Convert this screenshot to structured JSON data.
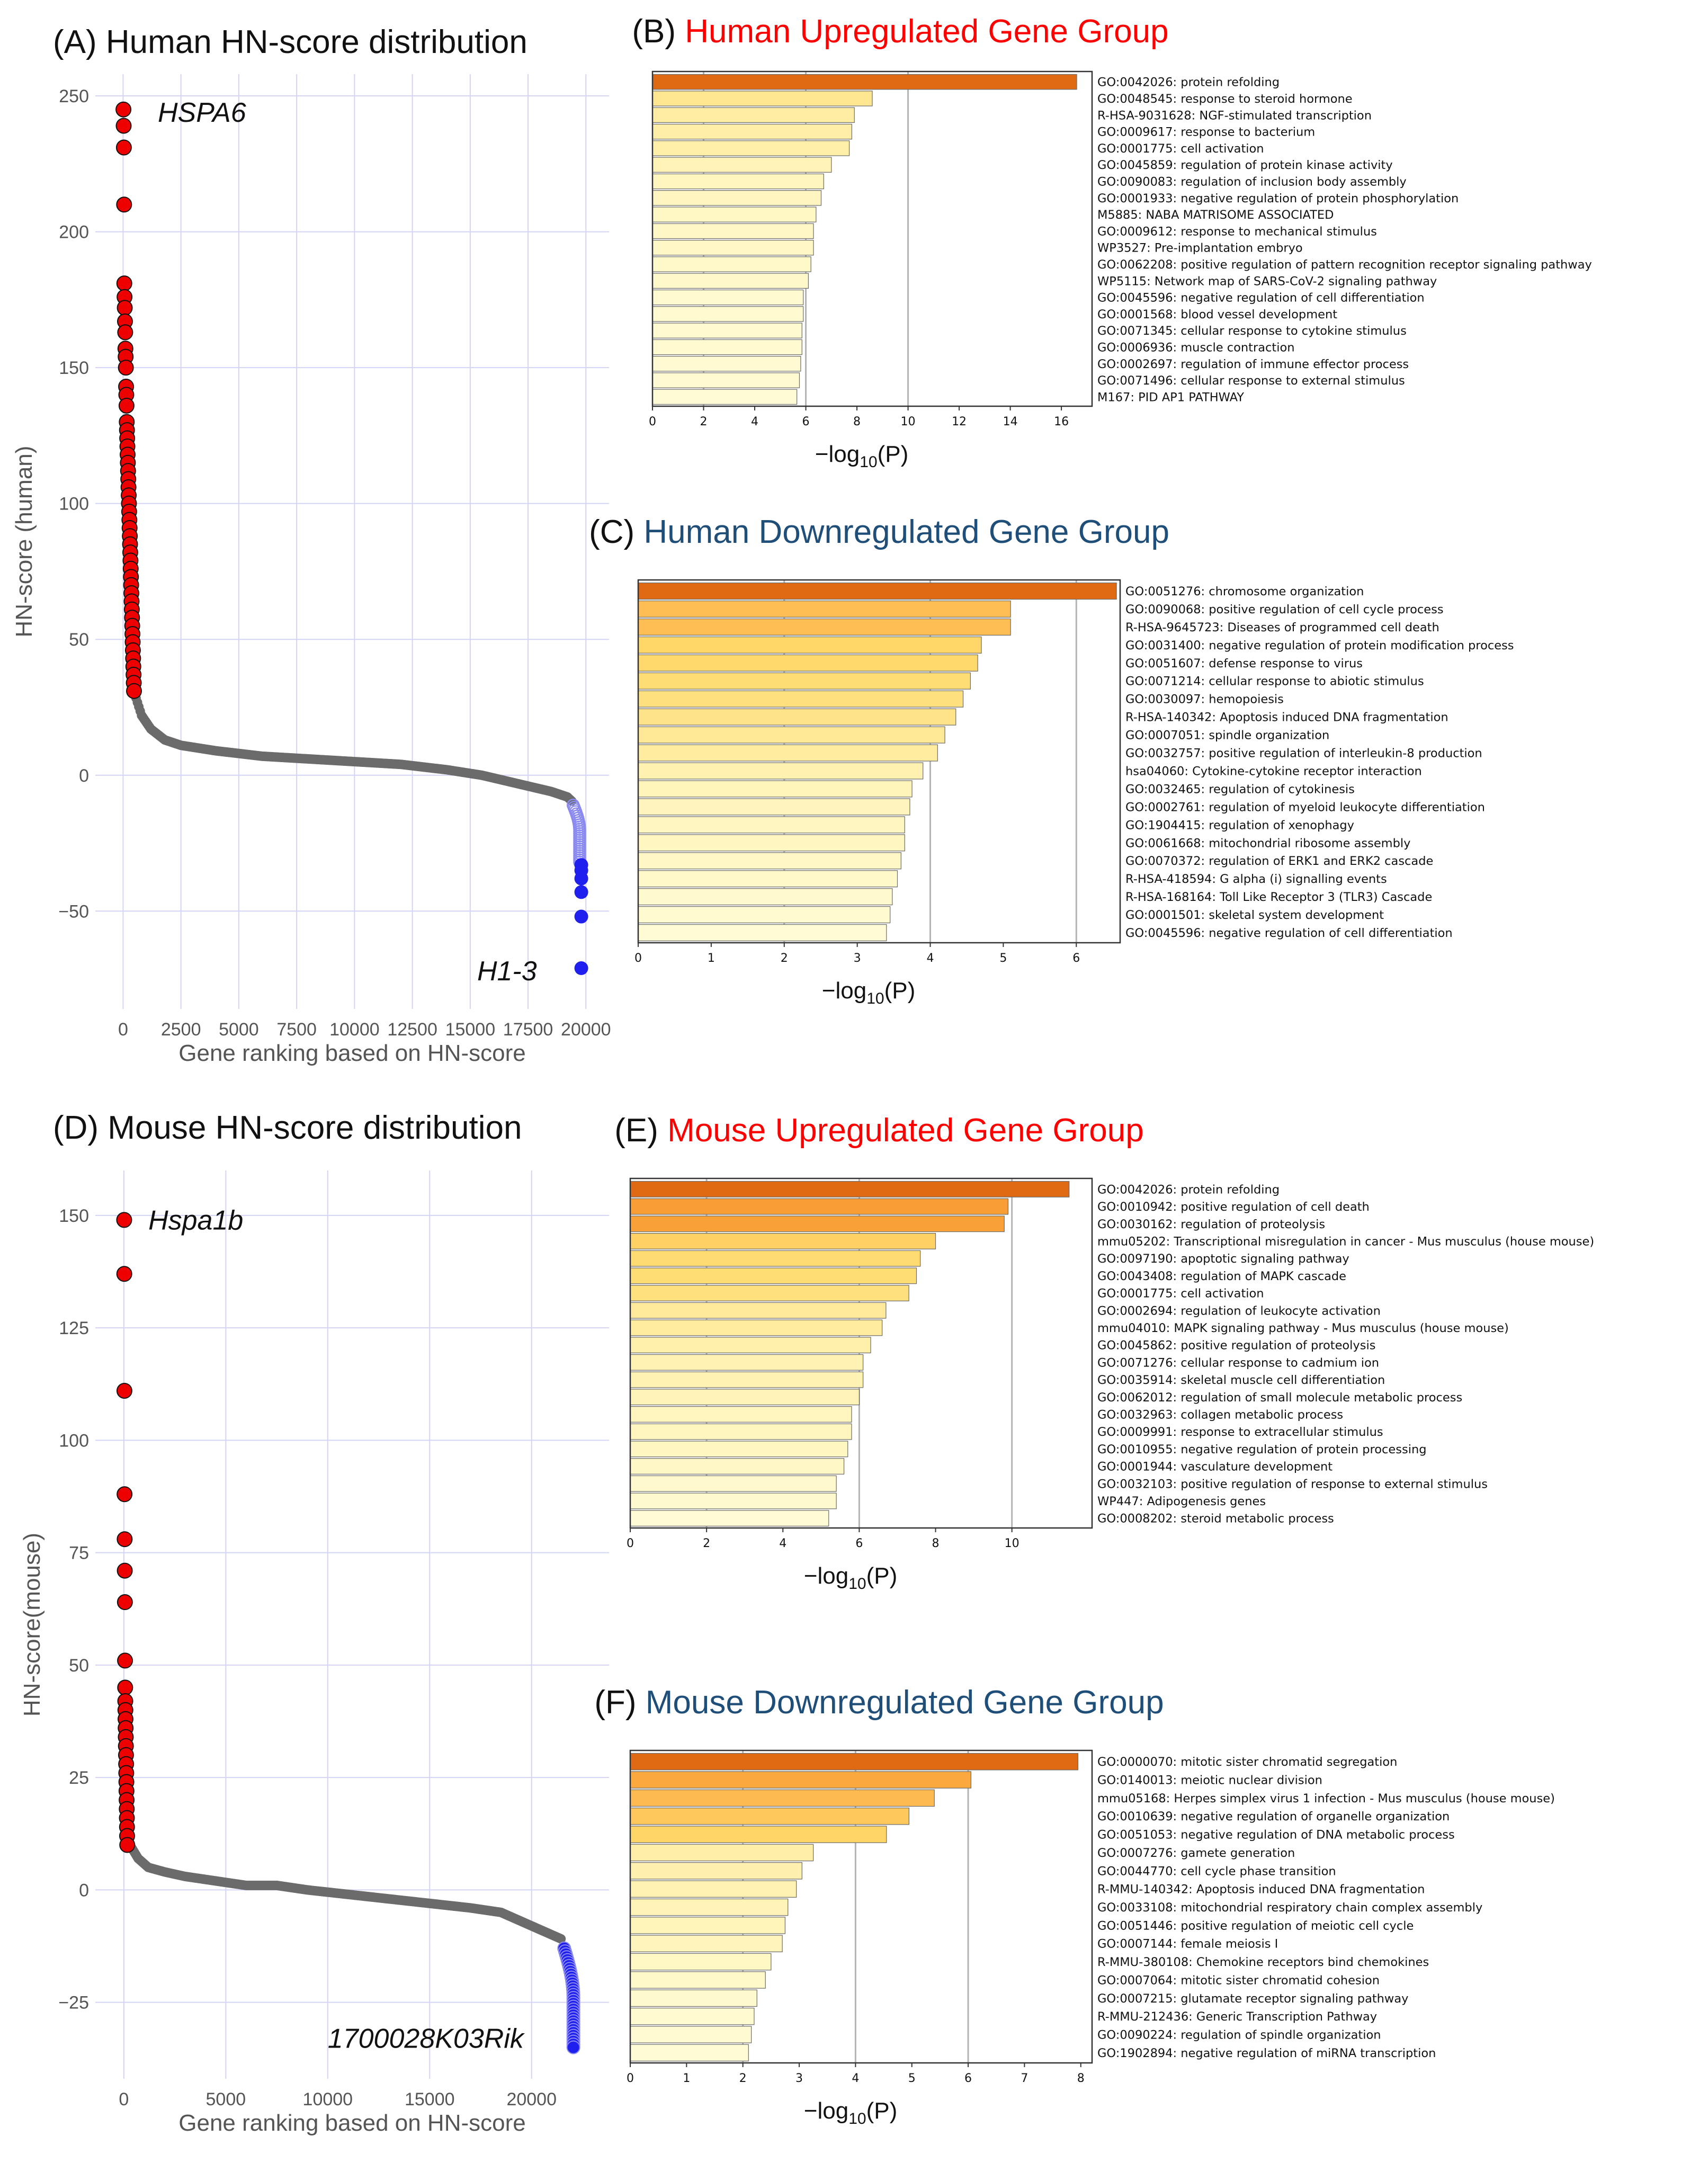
{
  "colors": {
    "up": "#ff0000",
    "down": "#1f4e79",
    "scatter_red": "#ee0000",
    "scatter_gray": "#6b6b6b",
    "scatter_blue": "#2020ee",
    "scatter_lightblue": "#8a8af0",
    "bar_palette": [
      "#fffbd4",
      "#ffeea6",
      "#ffd96b",
      "#fdb34a",
      "#f7962c",
      "#e06a14"
    ]
  },
  "chart_data": [
    {
      "id": "A",
      "type": "scatter",
      "title": "(A) Human HN-score distribution",
      "xlabel": "Gene ranking based on HN-score",
      "ylabel": "HN-score (human)",
      "xlim": [
        -1200,
        21000
      ],
      "ylim": [
        -86,
        258
      ],
      "xticks": [
        0,
        2500,
        5000,
        7500,
        10000,
        12500,
        15000,
        17500,
        20000
      ],
      "yticks": [
        -50,
        0,
        50,
        100,
        150,
        200,
        250
      ],
      "grid": true,
      "n_genes": 19900,
      "annotations": [
        {
          "text": "HSPA6",
          "x": 1500,
          "y": 244
        },
        {
          "text": "H1-3",
          "x": 15300,
          "y": -72
        }
      ],
      "red_points": [
        245,
        239,
        231,
        210,
        181,
        176,
        172,
        167,
        163,
        157,
        154,
        150,
        143,
        140,
        136,
        130,
        127,
        124,
        121,
        118,
        115,
        112,
        109,
        106,
        103,
        100,
        97,
        94,
        91,
        88,
        85,
        82,
        79,
        76,
        73,
        70,
        67,
        64,
        61,
        58,
        55,
        52,
        49,
        46,
        43,
        40,
        37,
        34,
        31
      ],
      "curve": [
        [
          500,
          30
        ],
        [
          800,
          22
        ],
        [
          1200,
          17
        ],
        [
          1800,
          13
        ],
        [
          2500,
          11
        ],
        [
          4000,
          9
        ],
        [
          6000,
          7
        ],
        [
          8000,
          6
        ],
        [
          10000,
          5
        ],
        [
          12000,
          4
        ],
        [
          14000,
          2
        ],
        [
          15500,
          0
        ],
        [
          16500,
          -2
        ],
        [
          17500,
          -4
        ],
        [
          18500,
          -6
        ],
        [
          19200,
          -8
        ],
        [
          19450,
          -10
        ]
      ],
      "blue_light_range": [
        -11,
        -32
      ],
      "blue_points": [
        -33,
        -35,
        -38,
        -43,
        -52,
        -71
      ]
    },
    {
      "id": "D",
      "type": "scatter",
      "title": "(D) Mouse HN-score distribution",
      "xlabel": "Gene ranking based on HN-score",
      "ylabel": "HN-score(mouse)",
      "xlim": [
        -1400,
        23800
      ],
      "ylim": [
        -42,
        160
      ],
      "xticks": [
        0,
        5000,
        10000,
        15000,
        20000
      ],
      "yticks": [
        -25,
        0,
        25,
        50,
        75,
        100,
        125,
        150
      ],
      "grid": true,
      "n_genes": 22000,
      "annotations": [
        {
          "text": "Hspa1b",
          "x": 1200,
          "y": 149
        },
        {
          "text": "1700028K03Rik",
          "x": 10000,
          "y": -33
        }
      ],
      "red_points": [
        149,
        137,
        111,
        88,
        78,
        71,
        64,
        51,
        45,
        42,
        40,
        38,
        36,
        34,
        32,
        30,
        28,
        26,
        24,
        22,
        20,
        18,
        16,
        14,
        12,
        10
      ],
      "curve": [
        [
          300,
          10
        ],
        [
          700,
          7
        ],
        [
          1200,
          5
        ],
        [
          2000,
          4
        ],
        [
          3000,
          3
        ],
        [
          4500,
          2
        ],
        [
          6000,
          1
        ],
        [
          7500,
          1
        ],
        [
          9000,
          0
        ],
        [
          11000,
          -1
        ],
        [
          13000,
          -2
        ],
        [
          15000,
          -3
        ],
        [
          17000,
          -4
        ],
        [
          18500,
          -5
        ],
        [
          19500,
          -7
        ],
        [
          20500,
          -9
        ],
        [
          21500,
          -11
        ]
      ],
      "blue_range": [
        -13,
        -35
      ]
    },
    {
      "id": "B",
      "type": "bar",
      "orientation": "horizontal",
      "title_prefix": "(B) ",
      "title_main": "Human Upregulated Gene Group",
      "title_color": "up",
      "xlabel": "−log₁₀(P)",
      "xlim": [
        0,
        17.2
      ],
      "xticks": [
        0,
        2,
        4,
        6,
        8,
        10,
        12,
        14,
        16
      ],
      "gridlines": [
        2,
        6,
        10
      ],
      "categories": [
        "GO:0042026: protein refolding",
        "GO:0048545: response to steroid hormone",
        "R-HSA-9031628: NGF-stimulated transcription",
        "GO:0009617: response to bacterium",
        "GO:0001775: cell activation",
        "GO:0045859: regulation of protein kinase activity",
        "GO:0090083: regulation of inclusion body assembly",
        "GO:0001933: negative regulation of protein phosphorylation",
        "M5885: NABA MATRISOME ASSOCIATED",
        "GO:0009612: response to mechanical stimulus",
        "WP3527: Pre-implantation embryo",
        "GO:0062208: positive regulation of pattern recognition receptor signaling pathway",
        "WP5115: Network map of SARS-CoV-2 signaling pathway",
        "GO:0045596: negative regulation of cell differentiation",
        "GO:0001568: blood vessel development",
        "GO:0071345: cellular response to cytokine stimulus",
        "GO:0006936: muscle contraction",
        "GO:0002697: regulation of immune effector process",
        "GO:0071496: cellular response to external stimulus",
        "M167: PID AP1 PATHWAY"
      ],
      "values": [
        16.6,
        8.6,
        7.9,
        7.8,
        7.7,
        7.0,
        6.7,
        6.6,
        6.4,
        6.3,
        6.3,
        6.2,
        6.1,
        5.9,
        5.9,
        5.85,
        5.85,
        5.8,
        5.75,
        5.65
      ]
    },
    {
      "id": "C",
      "type": "bar",
      "orientation": "horizontal",
      "title_prefix": "(C) ",
      "title_main": "Human Downregulated Gene Group",
      "title_color": "down",
      "xlabel": "−log₁₀(P)",
      "xlim": [
        0,
        6.6
      ],
      "xticks": [
        0,
        1,
        2,
        3,
        4,
        5,
        6
      ],
      "gridlines": [
        2,
        4,
        6
      ],
      "categories": [
        "GO:0051276: chromosome organization",
        "GO:0090068: positive regulation of cell cycle process",
        "R-HSA-9645723: Diseases of programmed cell death",
        "GO:0031400: negative regulation of protein modification process",
        "GO:0051607: defense response to virus",
        "GO:0071214: cellular response to abiotic stimulus",
        "GO:0030097: hemopoiesis",
        "R-HSA-140342: Apoptosis induced DNA fragmentation",
        "GO:0007051: spindle organization",
        "GO:0032757: positive regulation of interleukin-8 production",
        "hsa04060: Cytokine-cytokine receptor interaction",
        "GO:0032465: regulation of cytokinesis",
        "GO:0002761: regulation of myeloid leukocyte differentiation",
        "GO:1904415: regulation of xenophagy",
        "GO:0061668: mitochondrial ribosome assembly",
        "GO:0070372: regulation of ERK1 and ERK2 cascade",
        "R-HSA-418594: G alpha (i) signalling events",
        "R-HSA-168164: Toll Like Receptor 3 (TLR3) Cascade",
        "GO:0001501: skeletal system development",
        "GO:0045596: negative regulation of cell differentiation"
      ],
      "values": [
        6.55,
        5.1,
        5.1,
        4.7,
        4.65,
        4.55,
        4.45,
        4.35,
        4.2,
        4.1,
        3.9,
        3.75,
        3.72,
        3.65,
        3.65,
        3.6,
        3.55,
        3.48,
        3.45,
        3.4
      ]
    },
    {
      "id": "E",
      "type": "bar",
      "orientation": "horizontal",
      "title_prefix": "(E) ",
      "title_main": "Mouse Upregulated Gene Group",
      "title_color": "up",
      "xlabel": "−log₁₀(P)",
      "xlim": [
        0,
        12.1
      ],
      "xticks": [
        0,
        2,
        4,
        6,
        8,
        10
      ],
      "gridlines": [
        2,
        6,
        10
      ],
      "categories": [
        "GO:0042026: protein refolding",
        "GO:0010942: positive regulation of cell death",
        "GO:0030162: regulation of proteolysis",
        "mmu05202: Transcriptional misregulation in cancer - Mus musculus (house mouse)",
        "GO:0097190: apoptotic signaling pathway",
        "GO:0043408: regulation of MAPK cascade",
        "GO:0001775: cell activation",
        "GO:0002694: regulation of leukocyte activation",
        "mmu04010: MAPK signaling pathway - Mus musculus (house mouse)",
        "GO:0045862: positive regulation of proteolysis",
        "GO:0071276: cellular response to cadmium ion",
        "GO:0035914: skeletal muscle cell differentiation",
        "GO:0062012: regulation of small molecule metabolic process",
        "GO:0032963: collagen metabolic process",
        "GO:0009991: response to extracellular stimulus",
        "GO:0010955: negative regulation of protein processing",
        "GO:0001944: vasculature development",
        "GO:0032103: positive regulation of response to external stimulus",
        "WP447: Adipogenesis genes",
        "GO:0008202: steroid metabolic process"
      ],
      "values": [
        11.5,
        9.9,
        9.8,
        8.0,
        7.6,
        7.5,
        7.3,
        6.7,
        6.6,
        6.3,
        6.1,
        6.1,
        6.0,
        5.8,
        5.8,
        5.7,
        5.6,
        5.4,
        5.4,
        5.2
      ]
    },
    {
      "id": "F",
      "type": "bar",
      "orientation": "horizontal",
      "title_prefix": "(F) ",
      "title_main": "Mouse Downregulated Gene Group",
      "title_color": "down",
      "xlabel": "−log₁₀(P)",
      "xlim": [
        0,
        8.2
      ],
      "xticks": [
        0,
        1,
        2,
        3,
        4,
        5,
        6,
        7,
        8
      ],
      "gridlines": [
        2,
        4,
        6
      ],
      "categories": [
        "GO:0000070: mitotic sister chromatid segregation",
        "GO:0140013: meiotic nuclear division",
        "mmu05168: Herpes simplex virus 1 infection - Mus musculus (house mouse)",
        "GO:0010639: negative regulation of organelle organization",
        "GO:0051053: negative regulation of DNA metabolic process",
        "GO:0007276: gamete generation",
        "GO:0044770: cell cycle phase transition",
        "R-MMU-140342: Apoptosis induced DNA fragmentation",
        "GO:0033108: mitochondrial respiratory chain complex assembly",
        "GO:0051446: positive regulation of meiotic cell cycle",
        "GO:0007144: female meiosis I",
        "R-MMU-380108: Chemokine receptors bind chemokines",
        "GO:0007064: mitotic sister chromatid cohesion",
        "GO:0007215: glutamate receptor signaling pathway",
        "R-MMU-212436: Generic Transcription Pathway",
        "GO:0090224: regulation of spindle organization",
        "GO:1902894: negative regulation of miRNA transcription"
      ],
      "values": [
        7.95,
        6.05,
        5.4,
        4.95,
        4.55,
        3.25,
        3.05,
        2.95,
        2.8,
        2.75,
        2.7,
        2.5,
        2.4,
        2.25,
        2.2,
        2.15,
        2.1
      ]
    }
  ]
}
